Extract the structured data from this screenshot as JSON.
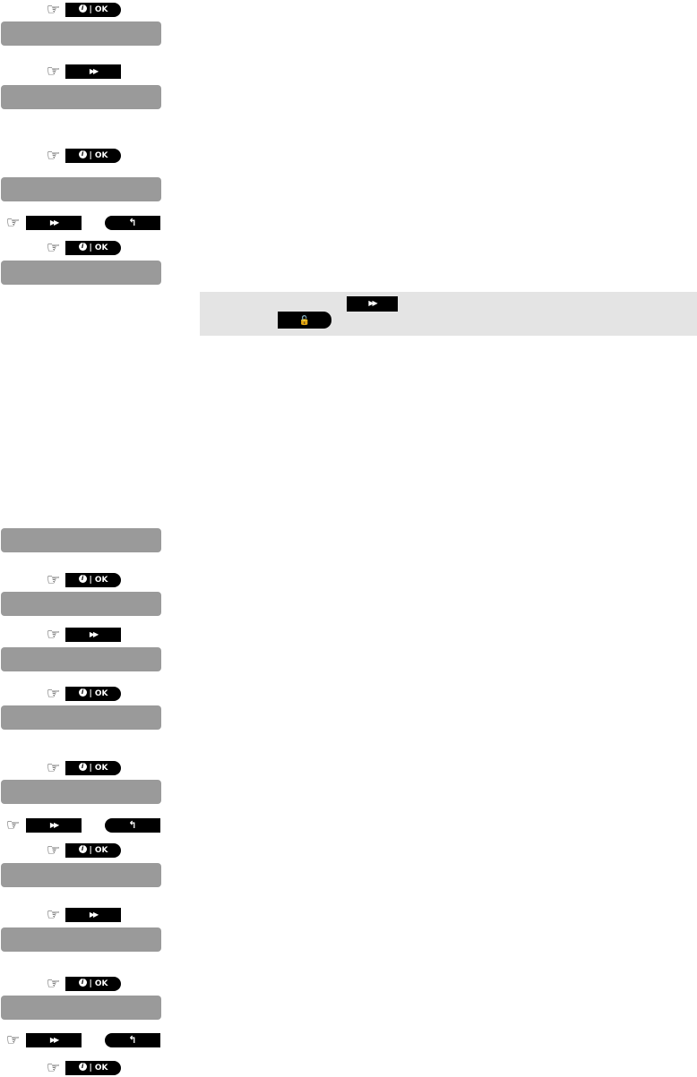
{
  "buttons": {
    "ok_label": "OK",
    "ok_info_glyph": "i",
    "ok_separator": "|",
    "next_glyph": "▶▶",
    "back_glyph": "↰",
    "lock_glyph": "🔓",
    "hand_glyph": "☞"
  },
  "colors": {
    "display_box": "#9a9a9a",
    "note_background": "#e4e4e4",
    "button": "#000000"
  }
}
